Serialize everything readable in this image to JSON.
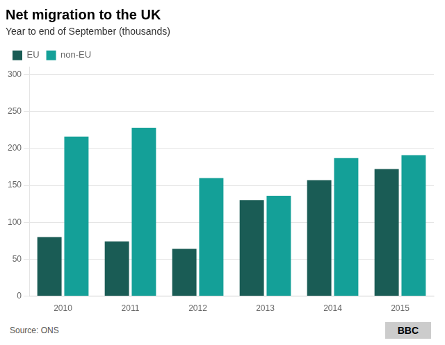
{
  "chart_data": {
    "type": "bar",
    "title": "Net migration to the UK",
    "subtitle": "Year to end of September (thousands)",
    "categories": [
      "2010",
      "2011",
      "2012",
      "2013",
      "2014",
      "2015"
    ],
    "series": [
      {
        "name": "EU",
        "color": "#1a5c55",
        "values": [
          80,
          74,
          64,
          130,
          157,
          172
        ]
      },
      {
        "name": "non-EU",
        "color": "#14a098",
        "values": [
          216,
          228,
          160,
          136,
          187,
          191
        ]
      }
    ],
    "ylim": [
      0,
      310
    ],
    "yticks": [
      0,
      50,
      100,
      150,
      200,
      250,
      300
    ],
    "grid": true,
    "legend": "upper left",
    "annotations": [
      "Source: ONS",
      "BBC"
    ]
  }
}
